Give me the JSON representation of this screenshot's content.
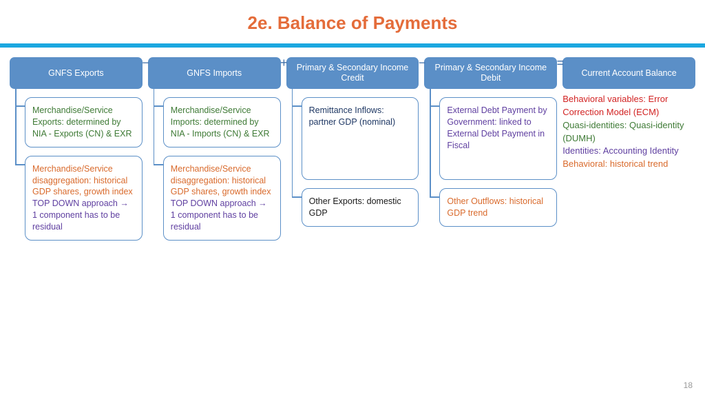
{
  "title": {
    "text": "2e. Balance of Payments",
    "color": "#e46c3a"
  },
  "divider_color": "#1ba7e0",
  "page_number": "18",
  "header_bg": "#5b8fc7",
  "box_border": "#5b8fc7",
  "connector_color": "#5b8fc7",
  "op_color": "#3f6fa8",
  "text_colors": {
    "green": "#3e7a35",
    "orange": "#d96a2c",
    "purple": "#5f3fa0",
    "navy": "#1f3864",
    "red": "#d22323",
    "black": "#1a1a1a"
  },
  "columns": [
    {
      "header": "GNFS Exports",
      "op_after": "−",
      "boxes": [
        {
          "lines": [
            {
              "text": "Merchandise/Service Exports: determined by NIA - Exports (CN) & EXR",
              "color": "green"
            }
          ]
        },
        {
          "lines": [
            {
              "text": "Merchandise/Service disaggregation: historical GDP shares, growth index",
              "color": "orange"
            },
            {
              "text": "TOP DOWN approach → 1 component has to be residual",
              "color": "purple"
            }
          ]
        }
      ]
    },
    {
      "header": "GNFS Imports",
      "op_after": "+",
      "boxes": [
        {
          "lines": [
            {
              "text": "Merchandise/Service Imports: determined by NIA - Imports (CN) & EXR",
              "color": "green"
            }
          ]
        },
        {
          "lines": [
            {
              "text": "Merchandise/Service disaggregation: historical GDP shares, growth index",
              "color": "orange"
            },
            {
              "text": "TOP DOWN approach → 1 component has to be residual",
              "color": "purple"
            }
          ]
        }
      ]
    },
    {
      "header": "Primary & Secondary Income Credit",
      "op_after": "−",
      "boxes": [
        {
          "lines": [
            {
              "text": "Remittance Inflows: partner GDP (nominal)",
              "color": "navy"
            }
          ],
          "tall": true
        },
        {
          "lines": [
            {
              "text": "Other Exports: domestic GDP",
              "color": "black"
            }
          ]
        }
      ]
    },
    {
      "header": "Primary & Secondary Income Debit",
      "op_after": "=",
      "boxes": [
        {
          "lines": [
            {
              "text": "External Debt Payment by Government: linked to External Debt Payment in Fiscal",
              "color": "purple"
            }
          ],
          "tall": true
        },
        {
          "lines": [
            {
              "text": "Other Outflows: historical GDP trend",
              "color": "orange"
            }
          ]
        }
      ]
    },
    {
      "header": "Current Account Balance",
      "legend": [
        {
          "text": "Behavioral variables: Error Correction Model (ECM)",
          "color": "red"
        },
        {
          "text": "Quasi-identities: Quasi-identity (DUMH)",
          "color": "green"
        },
        {
          "text": "Identities: Accounting Identity",
          "color": "purple"
        },
        {
          "text": "Behavioral: historical trend",
          "color": "orange"
        }
      ]
    }
  ]
}
